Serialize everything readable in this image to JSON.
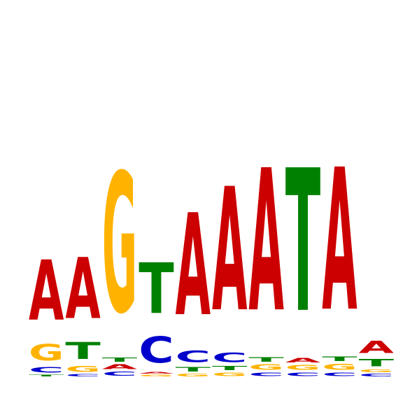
{
  "letter_colors": {
    "A": "#cc0000",
    "C": "#0000cc",
    "G": "#ffb300",
    "T": "#008000"
  },
  "chart_data": {
    "type": "sequence-logo",
    "alphabet": [
      "A",
      "C",
      "G",
      "T"
    ],
    "columns": [
      [
        {
          "l": "T",
          "h": 4
        },
        {
          "l": "C",
          "h": 12
        },
        {
          "l": "G",
          "h": 38
        },
        {
          "l": "A",
          "h": 138
        }
      ],
      [
        {
          "l": "C",
          "h": 5
        },
        {
          "l": "G",
          "h": 13
        },
        {
          "l": "T",
          "h": 38
        },
        {
          "l": "A",
          "h": 140
        }
      ],
      [
        {
          "l": "C",
          "h": 9
        },
        {
          "l": "A",
          "h": 11
        },
        {
          "l": "T",
          "h": 9
        },
        {
          "l": "G",
          "h": 320
        }
      ],
      [
        {
          "l": "G",
          "h": 4
        },
        {
          "l": "A",
          "h": 4
        },
        {
          "l": "C",
          "h": 60
        },
        {
          "l": "T",
          "h": 116
        }
      ],
      [
        {
          "l": "G",
          "h": 6
        },
        {
          "l": "T",
          "h": 10
        },
        {
          "l": "C",
          "h": 26
        },
        {
          "l": "A",
          "h": 234
        }
      ],
      [
        {
          "l": "G",
          "h": 8
        },
        {
          "l": "T",
          "h": 9
        },
        {
          "l": "C",
          "h": 22
        },
        {
          "l": "A",
          "h": 283
        }
      ],
      [
        {
          "l": "C",
          "h": 8
        },
        {
          "l": "G",
          "h": 12
        },
        {
          "l": "T",
          "h": 10
        },
        {
          "l": "A",
          "h": 326
        }
      ],
      [
        {
          "l": "C",
          "h": 8
        },
        {
          "l": "G",
          "h": 11
        },
        {
          "l": "A",
          "h": 10
        },
        {
          "l": "T",
          "h": 327
        }
      ],
      [
        {
          "l": "C",
          "h": 8
        },
        {
          "l": "G",
          "h": 13
        },
        {
          "l": "T",
          "h": 10
        },
        {
          "l": "A",
          "h": 326
        }
      ],
      [
        {
          "l": "C",
          "h": 6
        },
        {
          "l": "G",
          "h": 6
        },
        {
          "l": "T",
          "h": 17
        },
        {
          "l": "A",
          "h": 28
        }
      ]
    ]
  }
}
